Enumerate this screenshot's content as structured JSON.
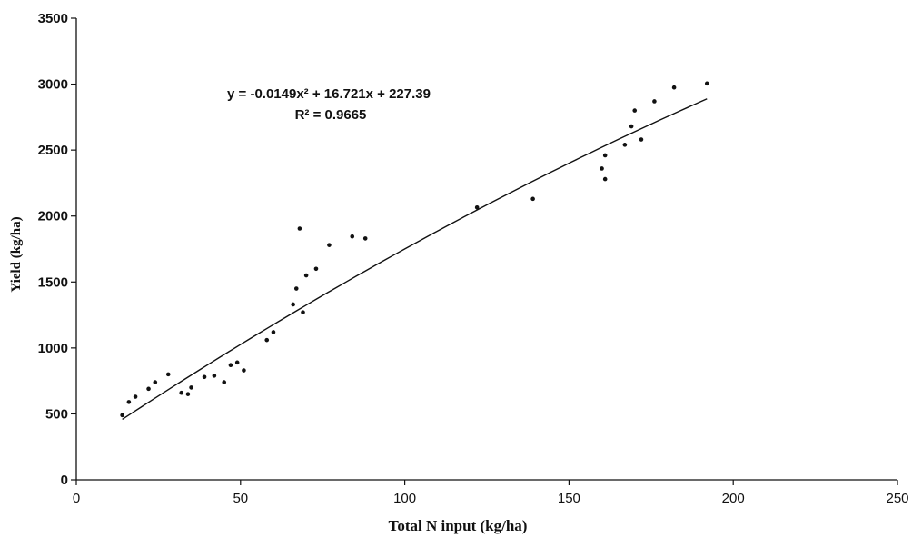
{
  "chart_data": {
    "type": "scatter",
    "xlabel": "Total N input (kg/ha)",
    "ylabel": "Yield (kg/ha)",
    "xlim": [
      0,
      250
    ],
    "ylim": [
      0,
      3500
    ],
    "xticks": [
      0,
      50,
      100,
      150,
      200,
      250
    ],
    "yticks": [
      0,
      500,
      1000,
      1500,
      2000,
      2500,
      3000,
      3500
    ],
    "grid": false,
    "legend": "none",
    "series": [
      {
        "points": [
          [
            14,
            490
          ],
          [
            16,
            590
          ],
          [
            18,
            630
          ],
          [
            22,
            690
          ],
          [
            24,
            740
          ],
          [
            28,
            800
          ],
          [
            32,
            660
          ],
          [
            34,
            650
          ],
          [
            35,
            700
          ],
          [
            39,
            780
          ],
          [
            42,
            790
          ],
          [
            45,
            740
          ],
          [
            47,
            870
          ],
          [
            49,
            890
          ],
          [
            51,
            830
          ],
          [
            58,
            1060
          ],
          [
            60,
            1120
          ],
          [
            66,
            1330
          ],
          [
            67,
            1450
          ],
          [
            68,
            1905
          ],
          [
            69,
            1270
          ],
          [
            70,
            1550
          ],
          [
            73,
            1600
          ],
          [
            77,
            1780
          ],
          [
            84,
            1845
          ],
          [
            88,
            1830
          ],
          [
            122,
            2065
          ],
          [
            139,
            2130
          ],
          [
            160,
            2360
          ],
          [
            161,
            2460
          ],
          [
            161,
            2280
          ],
          [
            167,
            2540
          ],
          [
            169,
            2680
          ],
          [
            170,
            2800
          ],
          [
            172,
            2580
          ],
          [
            176,
            2870
          ],
          [
            182,
            2975
          ],
          [
            192,
            3005
          ]
        ]
      }
    ],
    "trendline": {
      "type": "polynomial",
      "coefficients": {
        "a": -0.0149,
        "b": 16.721,
        "c": 227.39
      },
      "x_range": [
        14,
        192
      ],
      "equation_label": "y = -0.0149x² + 16.721x + 227.39",
      "r2_label": "R² = 0.9665"
    },
    "colors": {
      "marker": "#111111",
      "line": "#111111",
      "axis": "#111111"
    }
  }
}
